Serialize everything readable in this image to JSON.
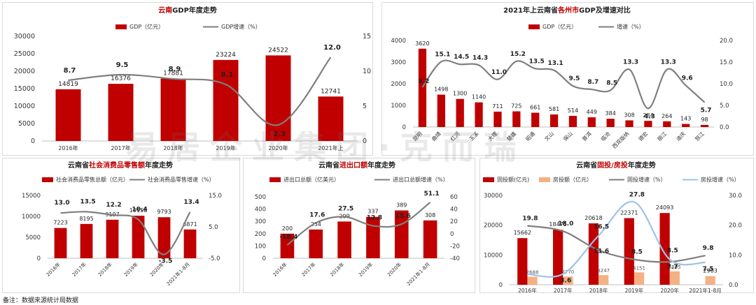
{
  "footnote": "备注：数据来源统计局数据",
  "watermark": "易居企业集团·克而瑞",
  "colors": {
    "bar": "#c00000",
    "line": "#7f7f7f",
    "bar_light": "#f4b183",
    "line_light": "#9dc3e6"
  },
  "chart_data": [
    {
      "type": "bar",
      "title_parts": [
        "云南",
        "GDP年度走势"
      ],
      "title_highlight": [
        true,
        false
      ],
      "legend": [
        "GDP（亿元）",
        "GDP增速（%）"
      ],
      "categories": [
        "2016年",
        "2017年",
        "2018年",
        "2019年",
        "2020年",
        "2021年上"
      ],
      "series": [
        {
          "name": "GDP（亿元）",
          "kind": "bar",
          "axis": "left",
          "values": [
            14819,
            16376,
            17881,
            23224,
            24522,
            12741
          ]
        },
        {
          "name": "GDP增速（%）",
          "kind": "line",
          "axis": "right",
          "values": [
            8.7,
            9.5,
            8.9,
            8.1,
            2.3,
            12.0
          ]
        }
      ],
      "value_labels": [
        "14819",
        "16376",
        "17881",
        "23224",
        "24522",
        "12741"
      ],
      "line_labels": [
        "8.7",
        "9.5",
        "8.9",
        "8.1",
        "2.3",
        "12.0"
      ],
      "ylim": [
        0,
        30000
      ],
      "yticks": [
        "0",
        "5000",
        "10000",
        "15000",
        "20000",
        "25000",
        "30000"
      ],
      "y2lim": [
        0,
        15
      ],
      "y2ticks": [
        "0",
        "5",
        "10",
        "15"
      ],
      "grid": false,
      "legend_position": "top"
    },
    {
      "type": "bar",
      "title_parts": [
        "2021年上云南省",
        "各州市",
        "GDP及增速对比"
      ],
      "title_highlight": [
        false,
        true,
        false
      ],
      "legend": [
        "GDP（亿元）",
        "增速（%）"
      ],
      "categories": [
        "昆明",
        "曲靖",
        "红河",
        "玉溪",
        "大理",
        "楚雄",
        "昭通",
        "文山",
        "保山",
        "普洱",
        "临沧",
        "西双版纳",
        "德宏",
        "丽江",
        "迪庆",
        "怒江"
      ],
      "series": [
        {
          "name": "GDP（亿元）",
          "kind": "bar",
          "axis": "left",
          "values": [
            3620,
            1498,
            1300,
            1140,
            711,
            725,
            661,
            581,
            514,
            449,
            384,
            308,
            284,
            264,
            143,
            98
          ]
        },
        {
          "name": "增速（%）",
          "kind": "line",
          "axis": "right",
          "values": [
            9.2,
            15.1,
            14.5,
            14.3,
            11.0,
            15.2,
            13.5,
            13.1,
            9.5,
            8.7,
            8.5,
            13.3,
            4.3,
            13.3,
            9.6,
            5.7
          ]
        }
      ],
      "value_labels": [
        "3620",
        "1498",
        "1300",
        "1140",
        "711",
        "725",
        "661",
        "581",
        "514",
        "449",
        "384",
        "308",
        "284",
        "264",
        "143",
        "98"
      ],
      "line_labels": [
        "9.2",
        "15.1",
        "14.5",
        "14.3",
        "11.0",
        "15.2",
        "13.5",
        "13.1",
        "9.5",
        "8.7",
        "8.5",
        "13.3",
        "4.3",
        "13.3",
        "9.6",
        "5.7"
      ],
      "ylim": [
        0,
        4000
      ],
      "yticks": [
        "0",
        "1000",
        "2000",
        "3000",
        "4000"
      ],
      "y2lim": [
        0,
        20
      ],
      "y2ticks": [
        "0.0",
        "5.0",
        "10.0",
        "15.0",
        "20.0"
      ],
      "grid": false,
      "legend_position": "top"
    },
    {
      "type": "bar",
      "title_parts": [
        "云南省",
        "社会消费品零售额",
        "年度走势"
      ],
      "title_highlight": [
        false,
        true,
        false
      ],
      "legend": [
        "社会消费品零售总额（亿元）",
        "社会消费品零售增速（%）"
      ],
      "categories": [
        "2016年",
        "2017年",
        "2018年",
        "2019年",
        "2020年",
        "2021年1-8月"
      ],
      "series": [
        {
          "name": "社会消费品零售总额（亿元）",
          "kind": "bar",
          "axis": "left",
          "values": [
            7223,
            8195,
            9197,
            10158,
            9793,
            6871
          ]
        },
        {
          "name": "社会消费品零售增速（%）",
          "kind": "line",
          "axis": "right",
          "values": [
            13.0,
            13.5,
            12.2,
            10.4,
            -3.5,
            13.4
          ]
        }
      ],
      "value_labels": [
        "7223",
        "8195",
        "9197",
        "10158",
        "9793",
        "6871"
      ],
      "line_labels": [
        "13.0",
        "13.5",
        "12.2",
        "10.4",
        "-3.5",
        "13.4"
      ],
      "ylim": [
        0,
        15000
      ],
      "yticks": [
        "0",
        "5000",
        "10000",
        "15000"
      ],
      "y2lim": [
        -5,
        20
      ],
      "y2ticks": [
        "-5.0",
        "5.0",
        "15.0"
      ],
      "grid": false,
      "legend_position": "top"
    },
    {
      "type": "bar",
      "title_parts": [
        "云南省",
        "进出口额",
        "年度走势"
      ],
      "title_highlight": [
        false,
        true,
        false
      ],
      "legend": [
        "进出口总额（亿美元）",
        "进出口总额增速（%）"
      ],
      "categories": [
        "2016年",
        "2017年",
        "2018年",
        "2019年",
        "2020年",
        "2021年1-8月"
      ],
      "series": [
        {
          "name": "进出口总额（亿美元）",
          "kind": "bar",
          "axis": "left",
          "values": [
            200,
            234,
            299,
            337,
            389,
            308
          ]
        },
        {
          "name": "进出口总额增速（%）",
          "kind": "line",
          "axis": "right",
          "values": [
            -18.4,
            17.6,
            27.5,
            12.8,
            15.6,
            51.1
          ]
        }
      ],
      "value_labels": [
        "200",
        "234",
        "299",
        "337",
        "389",
        "308"
      ],
      "line_labels": [
        "-18.4",
        "17.6",
        "27.5",
        "12.8",
        "15.6",
        "51.1"
      ],
      "ylim": [
        0,
        500
      ],
      "yticks": [
        "0",
        "100",
        "200",
        "300",
        "400",
        "500"
      ],
      "y2lim": [
        -40,
        60
      ],
      "y2ticks": [
        "-40",
        "-20",
        "0",
        "20",
        "40",
        "60"
      ],
      "grid": false,
      "legend_position": "top"
    },
    {
      "type": "bar",
      "title_parts": [
        "云南省",
        "固投/房投",
        "年度走势"
      ],
      "title_highlight": [
        false,
        true,
        false
      ],
      "legend": [
        "固投额(亿元)",
        "房投额（亿元）",
        "固投增速（%）",
        "房投增速（%）"
      ],
      "categories": [
        "2016年",
        "2017年",
        "2018年",
        "2019年",
        "2020年",
        "2021年1-8月"
      ],
      "series": [
        {
          "name": "固投额(亿元)",
          "kind": "bar",
          "axis": "left",
          "values": [
            15662,
            18475,
            20618,
            22371,
            24093,
            null
          ]
        },
        {
          "name": "房投额（亿元）",
          "kind": "bar",
          "axis": "left",
          "values": [
            2688,
            2770,
            3247,
            4151,
            4505,
            2903
          ]
        },
        {
          "name": "固投增速（%）",
          "kind": "line",
          "axis": "right",
          "values": [
            19.8,
            18.0,
            11.6,
            8.5,
            7.7,
            9.8
          ]
        },
        {
          "name": "房投增速（%）",
          "kind": "line",
          "axis": "right",
          "values": [
            3.6,
            3.6,
            16.5,
            27.8,
            8.5,
            7.5
          ]
        }
      ],
      "value_labels": [
        "15662",
        "18475",
        "20618",
        "22371",
        "24093",
        "2903"
      ],
      "line_labels": [
        "19.8",
        "18.0",
        "11.6",
        "8.5",
        "7.7",
        "9.8",
        "3.6",
        "16.5",
        "27.8",
        "8.5",
        "7.5"
      ],
      "ylim": [
        0,
        30000
      ],
      "yticks": [
        "0",
        "10000",
        "20000",
        "30000"
      ],
      "y2lim": [
        0,
        30
      ],
      "y2ticks": [
        "0.0",
        "10.0",
        "20.0",
        "30.0"
      ],
      "grid": false,
      "legend_position": "top"
    }
  ]
}
